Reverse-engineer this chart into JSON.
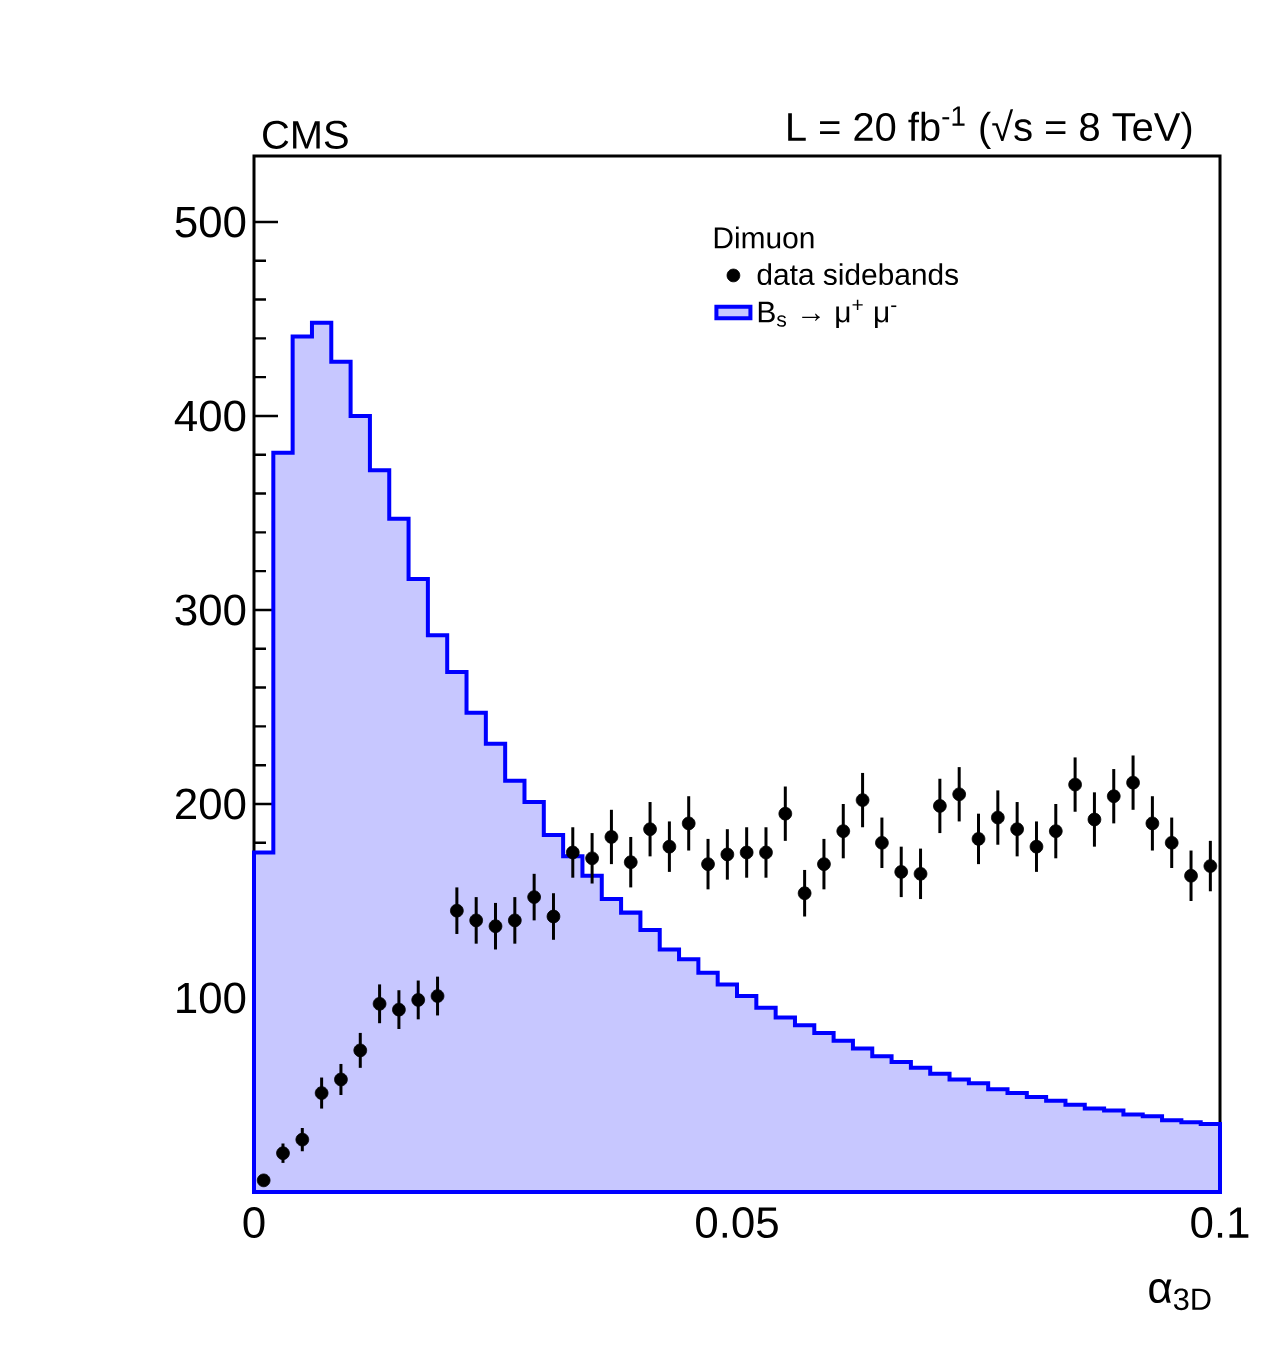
{
  "chart_data": {
    "type": "histogram",
    "title": "CMS",
    "subtitle": "L = 20 fb$^{-1}$ (√s = 8 TeV)",
    "xlabel": "α$_{3D}$",
    "legend_title": "Dimuon",
    "bins": [
      0,
      0.002,
      0.004,
      0.006,
      0.008,
      0.01,
      0.012,
      0.014,
      0.016,
      0.018,
      0.02,
      0.022,
      0.024,
      0.026,
      0.028,
      0.03,
      0.032,
      0.034,
      0.036,
      0.038,
      0.04,
      0.042,
      0.044,
      0.046,
      0.048,
      0.05,
      0.052,
      0.054,
      0.056,
      0.058,
      0.06,
      0.062,
      0.064,
      0.066,
      0.068,
      0.07,
      0.072,
      0.074,
      0.076,
      0.078,
      0.08,
      0.082,
      0.084,
      0.086,
      0.088,
      0.09,
      0.092,
      0.094,
      0.096,
      0.098,
      0.1
    ],
    "series": [
      {
        "name": "B$_{s}$ → μ$^{+}$ μ$^{-}$",
        "color": "#0000ff",
        "values": [
          175,
          381,
          441,
          448,
          428,
          400,
          372,
          347,
          316,
          287,
          268,
          247,
          231,
          212,
          201,
          184,
          173,
          163,
          151,
          144,
          135,
          125,
          120,
          113,
          107,
          101,
          95,
          90,
          86,
          82,
          78,
          74,
          70,
          67,
          64,
          61,
          58,
          56,
          53,
          51,
          49,
          47,
          45,
          43,
          42,
          40,
          39,
          37,
          36,
          35
        ]
      },
      {
        "name": "data sidebands",
        "type": "scatter",
        "color": "#000000",
        "x": [
          0.001,
          0.003,
          0.005,
          0.007,
          0.009,
          0.011,
          0.013,
          0.015,
          0.017,
          0.019,
          0.021,
          0.023,
          0.025,
          0.027,
          0.029,
          0.031,
          0.033,
          0.035,
          0.037,
          0.039,
          0.041,
          0.043,
          0.045,
          0.047,
          0.049,
          0.051,
          0.053,
          0.055,
          0.057,
          0.059,
          0.061,
          0.063,
          0.065,
          0.067,
          0.069,
          0.071,
          0.073,
          0.075,
          0.077,
          0.079,
          0.081,
          0.083,
          0.085,
          0.087,
          0.089,
          0.091,
          0.093,
          0.095,
          0.097,
          0.099
        ],
        "values": [
          6,
          20,
          27,
          51,
          58,
          73,
          97,
          94,
          99,
          101,
          145,
          140,
          137,
          140,
          152,
          142,
          175,
          172,
          183,
          170,
          187,
          178,
          190,
          169,
          174,
          175,
          175,
          195,
          154,
          169,
          186,
          202,
          180,
          165,
          164,
          199,
          205,
          182,
          193,
          187,
          178,
          186,
          210,
          192,
          204,
          211,
          190,
          180,
          163,
          168
        ],
        "errors": [
          3,
          5,
          6,
          8,
          8,
          9,
          10,
          10,
          10,
          10,
          12,
          12,
          12,
          12,
          12,
          12,
          13,
          13,
          14,
          13,
          14,
          13,
          14,
          13,
          13,
          13,
          13,
          14,
          12,
          13,
          14,
          14,
          13,
          13,
          13,
          14,
          14,
          13,
          14,
          14,
          13,
          14,
          14,
          14,
          14,
          14,
          14,
          13,
          13,
          13
        ]
      }
    ],
    "xlim": [
      0,
      0.1
    ],
    "ylim": [
      0,
      534
    ],
    "xticks": [
      0,
      0.05,
      0.1
    ],
    "yticks": [
      100,
      200,
      300,
      400,
      500
    ],
    "legend": "top right",
    "marker": "circle"
  }
}
